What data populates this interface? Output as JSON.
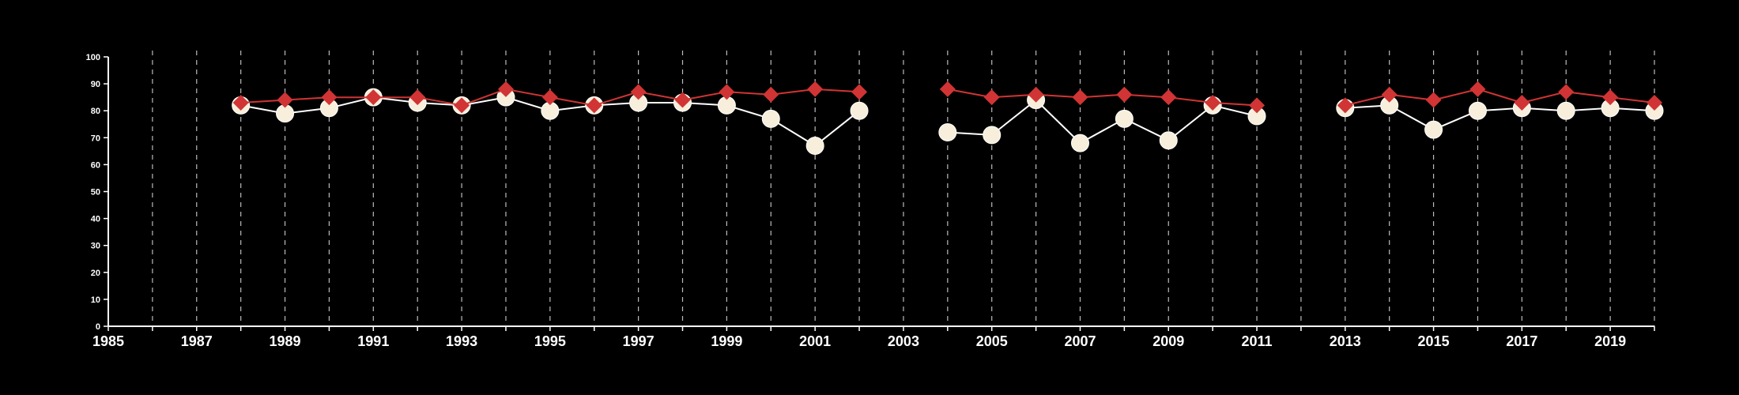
{
  "colors": {
    "background": "#000000",
    "axis": "#ffffff",
    "grid": "#bbbbbb",
    "series_white": "#f7eedb",
    "series_red": "#d13434"
  },
  "chart_data": {
    "type": "line",
    "title": "",
    "xlabel": "",
    "ylabel": "",
    "xlim": [
      1985,
      2020
    ],
    "ylim": [
      0,
      100
    ],
    "x_ticks_labeled": [
      1985,
      1987,
      1989,
      1991,
      1993,
      1995,
      1997,
      1999,
      2001,
      2003,
      2005,
      2007,
      2009,
      2011,
      2013,
      2015,
      2017,
      2019
    ],
    "y_ticks": [
      0,
      10,
      20,
      30,
      40,
      50,
      60,
      70,
      80,
      90,
      100
    ],
    "grid": "vertical dashed lines at every year",
    "legend": "none",
    "series": [
      {
        "marker": "circle",
        "color": "#f7eedb",
        "segments": [
          [
            [
              1988,
              82
            ],
            [
              1989,
              79
            ],
            [
              1990,
              81
            ],
            [
              1991,
              85
            ],
            [
              1992,
              83
            ],
            [
              1993,
              82
            ],
            [
              1994,
              85
            ],
            [
              1995,
              80
            ],
            [
              1996,
              82
            ],
            [
              1997,
              83
            ],
            [
              1998,
              83
            ],
            [
              1999,
              82
            ],
            [
              2000,
              77
            ],
            [
              2001,
              67
            ],
            [
              2002,
              80
            ]
          ],
          [
            [
              2004,
              72
            ],
            [
              2005,
              71
            ],
            [
              2006,
              84
            ],
            [
              2007,
              68
            ],
            [
              2008,
              77
            ],
            [
              2009,
              69
            ],
            [
              2010,
              82
            ],
            [
              2011,
              78
            ]
          ],
          [
            [
              2013,
              81
            ],
            [
              2014,
              82
            ],
            [
              2015,
              73
            ],
            [
              2016,
              80
            ],
            [
              2017,
              81
            ],
            [
              2018,
              80
            ],
            [
              2019,
              81
            ],
            [
              2020,
              80
            ]
          ]
        ]
      },
      {
        "marker": "diamond",
        "color": "#d13434",
        "segments": [
          [
            [
              1988,
              83
            ],
            [
              1989,
              84
            ],
            [
              1990,
              85
            ],
            [
              1991,
              85
            ],
            [
              1992,
              85
            ],
            [
              1993,
              82
            ],
            [
              1994,
              88
            ],
            [
              1995,
              85
            ],
            [
              1996,
              82
            ],
            [
              1997,
              87
            ],
            [
              1998,
              84
            ],
            [
              1999,
              87
            ],
            [
              2000,
              86
            ],
            [
              2001,
              88
            ],
            [
              2002,
              87
            ]
          ],
          [
            [
              2004,
              88
            ],
            [
              2005,
              85
            ],
            [
              2006,
              86
            ],
            [
              2007,
              85
            ],
            [
              2008,
              86
            ],
            [
              2009,
              85
            ],
            [
              2010,
              83
            ],
            [
              2011,
              82
            ]
          ],
          [
            [
              2013,
              82
            ],
            [
              2014,
              86
            ],
            [
              2015,
              84
            ],
            [
              2016,
              88
            ],
            [
              2017,
              83
            ],
            [
              2018,
              87
            ],
            [
              2019,
              85
            ],
            [
              2020,
              83
            ]
          ]
        ]
      }
    ]
  }
}
